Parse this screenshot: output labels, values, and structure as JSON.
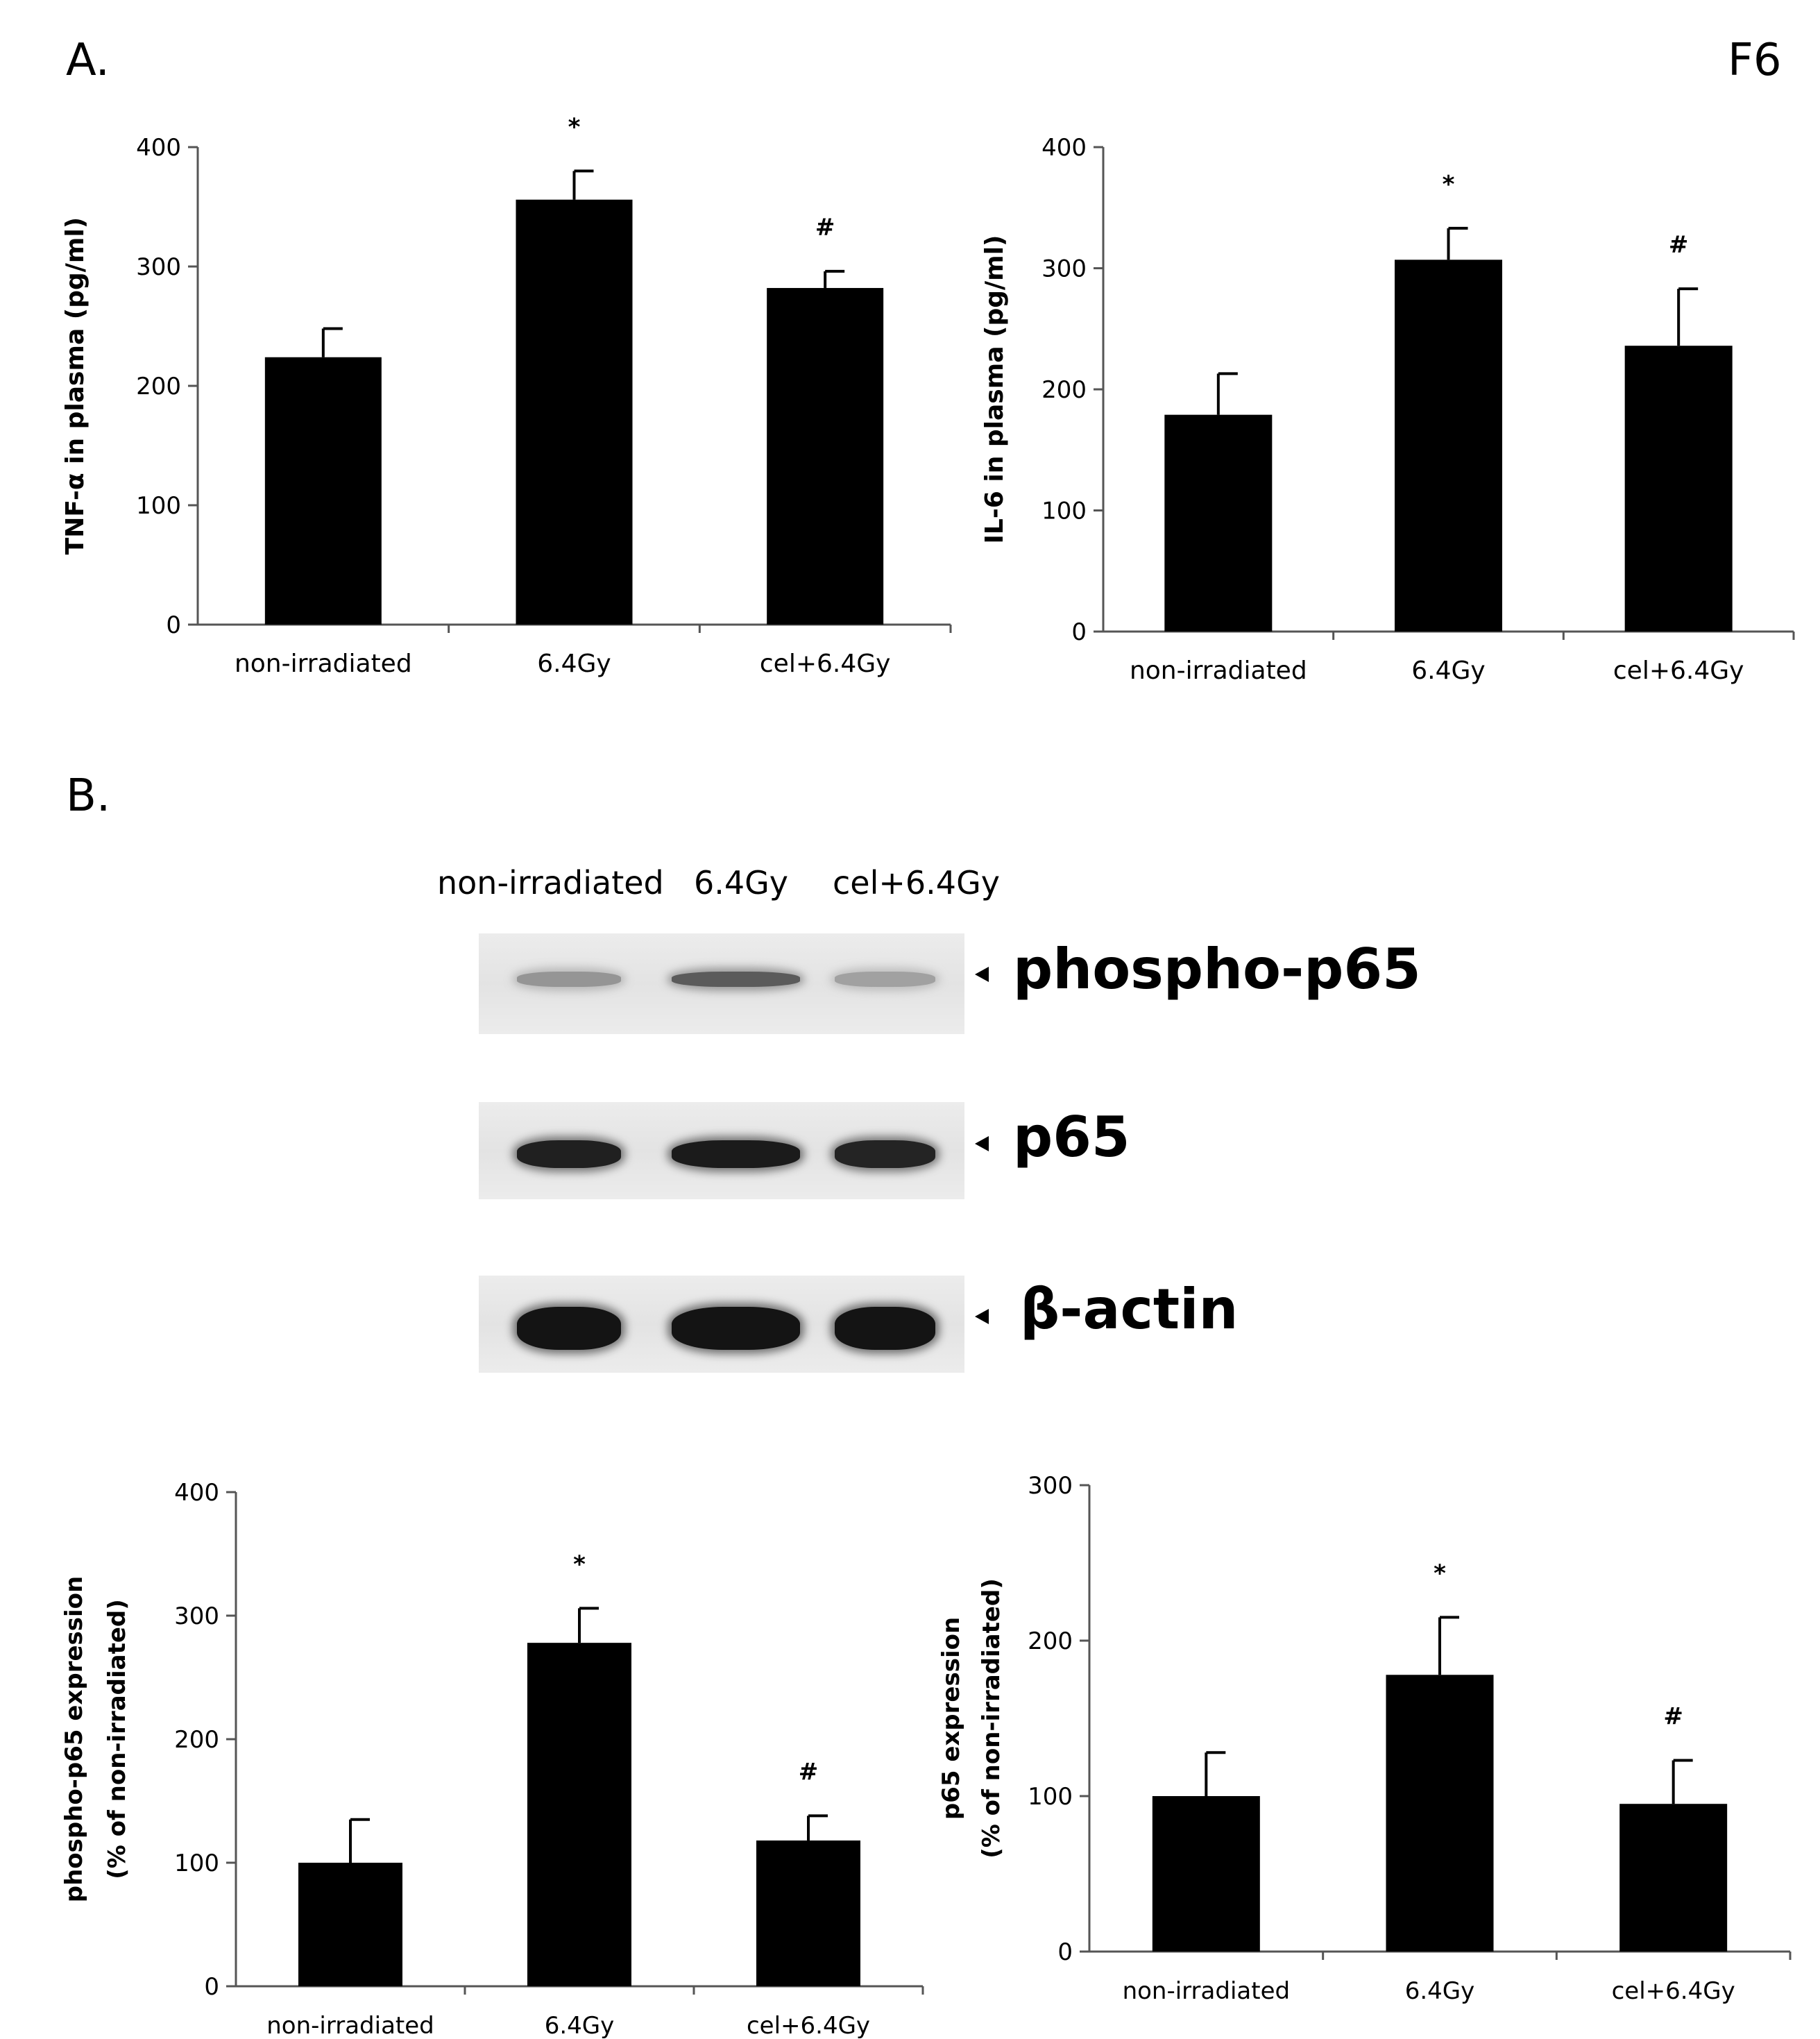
{
  "figure_id": "F6",
  "panels": {
    "a": "A.",
    "b": "B."
  },
  "chart_data": [
    {
      "type": "bar",
      "categories": [
        "non-irradiated",
        "6.4Gy",
        "cel+6.4Gy"
      ],
      "values": [
        224,
        356,
        282
      ],
      "errors": [
        24,
        24,
        14
      ],
      "annotations": [
        "",
        "*",
        "#"
      ],
      "ylabel": "TNF-α in plasma (pg/ml)",
      "ylim": [
        0,
        400
      ],
      "yticks": [
        0,
        100,
        200,
        300,
        400
      ],
      "grid": false,
      "color": "#000000"
    },
    {
      "type": "bar",
      "categories": [
        "non-irradiated",
        "6.4Gy",
        "cel+6.4Gy"
      ],
      "values": [
        179,
        307,
        236
      ],
      "errors": [
        34,
        26,
        47
      ],
      "annotations": [
        "",
        "*",
        "#"
      ],
      "ylabel": "IL-6 in plasma (pg/ml)",
      "ylim": [
        0,
        400
      ],
      "yticks": [
        0,
        100,
        200,
        300,
        400
      ],
      "grid": false,
      "color": "#000000"
    },
    {
      "type": "bar",
      "categories": [
        "non-irradiated",
        "6.4Gy",
        "cel+6.4Gy"
      ],
      "values": [
        100,
        278,
        118
      ],
      "errors": [
        35,
        28,
        20
      ],
      "annotations": [
        "",
        "*",
        "#"
      ],
      "ylabel": "phospho-p65 expression",
      "ylabel2": "(% of non-irradiated)",
      "ylim": [
        0,
        400
      ],
      "yticks": [
        0,
        100,
        200,
        300,
        400
      ],
      "grid": false,
      "color": "#000000"
    },
    {
      "type": "bar",
      "categories": [
        "non-irradiated",
        "6.4Gy",
        "cel+6.4Gy"
      ],
      "values": [
        100,
        178,
        95
      ],
      "errors": [
        28,
        37,
        28
      ],
      "annotations": [
        "",
        "*",
        "#"
      ],
      "ylabel": "p65 expression",
      "ylabel2": "(% of non-irradiated)",
      "ylim": [
        0,
        300
      ],
      "yticks": [
        0,
        100,
        200,
        300
      ],
      "grid": false,
      "color": "#000000"
    }
  ],
  "blot": {
    "lanes": [
      "non-irradiated",
      "6.4Gy",
      "cel+6.4Gy"
    ],
    "bands": [
      {
        "label": "phospho-p65",
        "intensity": [
          0.45,
          0.7,
          0.4
        ]
      },
      {
        "label": "p65",
        "intensity": [
          0.95,
          0.97,
          0.93
        ]
      },
      {
        "label": "β-actin",
        "intensity": [
          1.0,
          1.0,
          1.0
        ]
      }
    ]
  }
}
